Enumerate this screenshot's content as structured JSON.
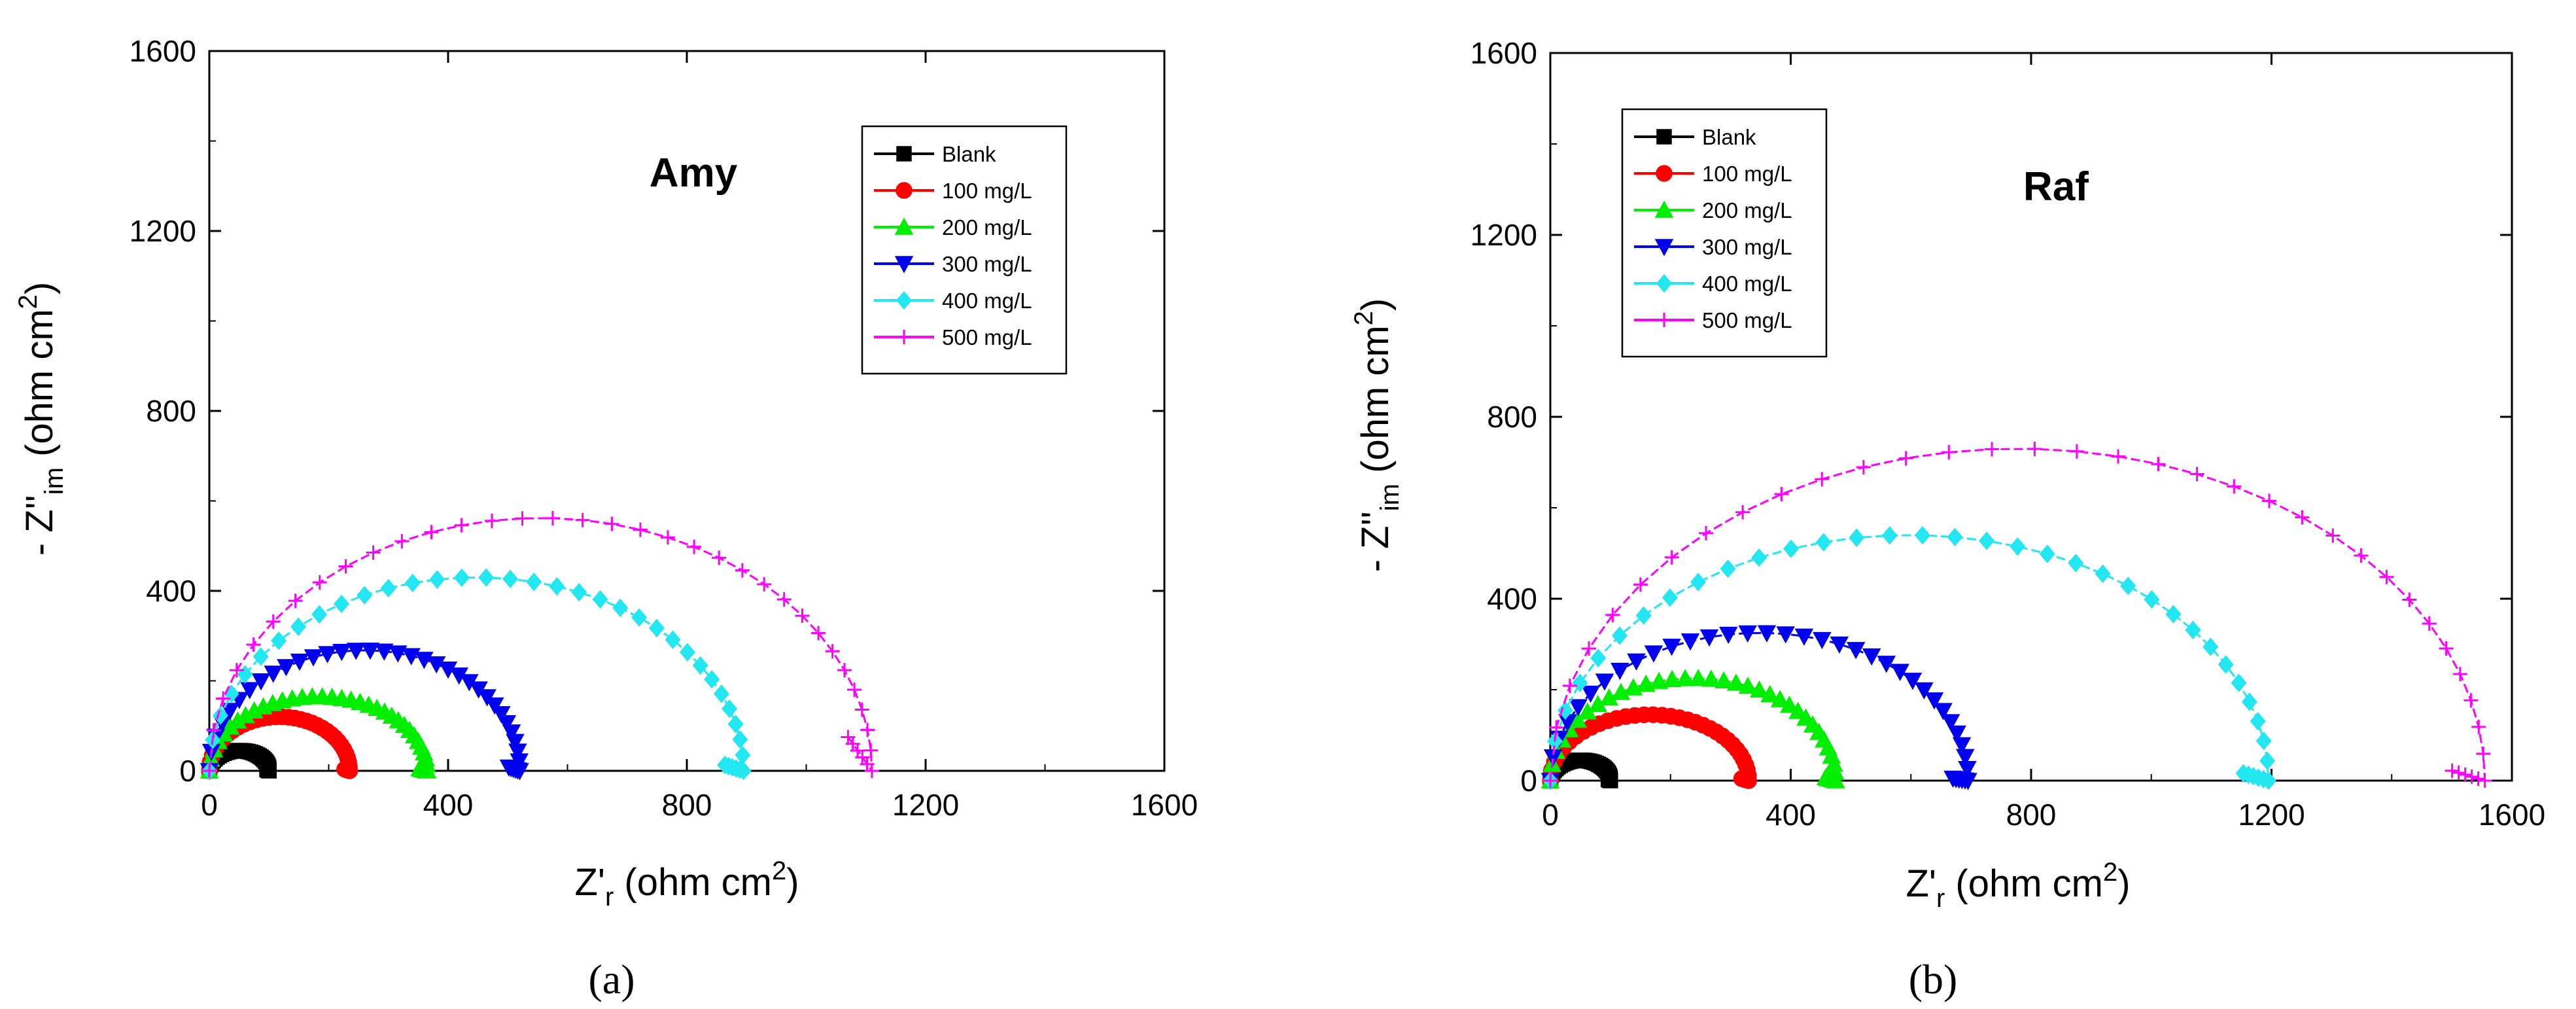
{
  "chart_data": [
    {
      "type": "scatter",
      "panel_label": "(a)",
      "annotation": "Amy",
      "xlabel": "Z'r (ohm cm2)",
      "xlabel_parts": {
        "main": "Z'",
        "sub": "r",
        "unit_open": " (ohm cm",
        "sup": "2",
        "unit_close": ")"
      },
      "ylabel": "- Z''im (ohm cm2)",
      "ylabel_parts": {
        "main": "- Z''",
        "sub": "im",
        "unit_open": " (ohm cm",
        "sup": "2",
        "unit_close": ")"
      },
      "xlim": [
        0,
        1600
      ],
      "ylim": [
        0,
        1600
      ],
      "xticks": [
        0,
        400,
        800,
        1200,
        1600
      ],
      "yticks": [
        0,
        400,
        800,
        1200,
        1600
      ],
      "legend_position": "top-right",
      "series": [
        {
          "name": "Blank",
          "Rct": 100,
          "peak": 45,
          "marker": "square",
          "color": "#000000"
        },
        {
          "name": "100 mg/L",
          "Rct": 235,
          "peak": 120,
          "marker": "circle",
          "color": "#ff0000"
        },
        {
          "name": "200 mg/L",
          "Rct": 365,
          "peak": 165,
          "marker": "triangle-up",
          "color": "#00ee00"
        },
        {
          "name": "300 mg/L",
          "Rct": 520,
          "peak": 268,
          "marker": "triangle-down",
          "color": "#0000ee"
        },
        {
          "name": "400 mg/L",
          "Rct": 895,
          "peak": 430,
          "marker": "diamond",
          "color": "#22e6f0"
        },
        {
          "name": "500 mg/L",
          "Rct": 1110,
          "peak": 562,
          "marker": "plus",
          "color": "#ff00ff",
          "end": [
            1070,
            75
          ]
        }
      ]
    },
    {
      "type": "scatter",
      "panel_label": "(b)",
      "annotation": "Raf",
      "xlabel": "Z'r (ohm cm2)",
      "xlabel_parts": {
        "main": "Z'",
        "sub": "r",
        "unit_open": " (ohm cm",
        "sup": "2",
        "unit_close": ")"
      },
      "ylabel": "- Z''im (ohm cm2)",
      "ylabel_parts": {
        "main": "- Z''",
        "sub": "im",
        "unit_open": " (ohm cm",
        "sup": "2",
        "unit_close": ")"
      },
      "xlim": [
        0,
        1600
      ],
      "ylim": [
        0,
        1600
      ],
      "xticks": [
        0,
        400,
        800,
        1200,
        1600
      ],
      "yticks": [
        0,
        400,
        800,
        1200,
        1600
      ],
      "legend_position": "top-left",
      "series": [
        {
          "name": "Blank",
          "Rct": 100,
          "peak": 45,
          "marker": "square",
          "color": "#000000"
        },
        {
          "name": "100 mg/L",
          "Rct": 330,
          "peak": 145,
          "marker": "circle",
          "color": "#ff0000"
        },
        {
          "name": "200 mg/L",
          "Rct": 475,
          "peak": 225,
          "marker": "triangle-up",
          "color": "#00ee00"
        },
        {
          "name": "300 mg/L",
          "Rct": 695,
          "peak": 325,
          "marker": "triangle-down",
          "color": "#0000ee",
          "end": [
            670,
            5
          ]
        },
        {
          "name": "400 mg/L",
          "Rct": 1195,
          "peak": 540,
          "marker": "diamond",
          "color": "#22e6f0"
        },
        {
          "name": "500 mg/L",
          "Rct": 1555,
          "peak": 730,
          "marker": "plus",
          "color": "#ff00ff"
        }
      ]
    }
  ]
}
